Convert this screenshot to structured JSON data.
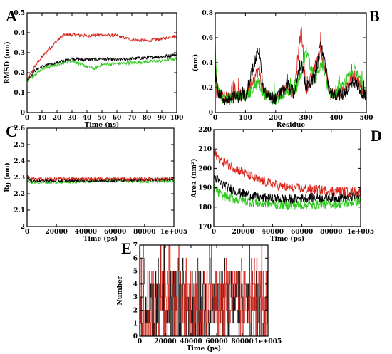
{
  "panels": [
    {
      "id": "A",
      "letter": "A",
      "type": "line",
      "xlabel": "Time (ns)",
      "ylabel": "RMSD (nm)",
      "xlim": [
        0,
        100
      ],
      "ylim": [
        0,
        0.5
      ],
      "xticks": [
        "0",
        "10",
        "20",
        "30",
        "40",
        "50",
        "60",
        "70",
        "80",
        "90",
        "100"
      ],
      "xtick_values": [
        0,
        10,
        20,
        30,
        40,
        50,
        60,
        70,
        80,
        90,
        100
      ],
      "yticks": [
        "0",
        "0.1",
        "0.2",
        "0.3",
        "0.4",
        "0.5"
      ],
      "ytick_values": [
        0,
        0.1,
        0.2,
        0.3,
        0.4,
        0.5
      ],
      "noise": 0.008,
      "series": [
        {
          "color": "#d9261c",
          "x": [
            0,
            5,
            10,
            15,
            20,
            25,
            30,
            40,
            50,
            60,
            70,
            80,
            90,
            100
          ],
          "y": [
            0.16,
            0.23,
            0.28,
            0.32,
            0.36,
            0.39,
            0.39,
            0.385,
            0.39,
            0.385,
            0.365,
            0.36,
            0.37,
            0.385
          ]
        },
        {
          "color": "#000000",
          "x": [
            0,
            5,
            10,
            20,
            30,
            40,
            50,
            60,
            70,
            80,
            90,
            100
          ],
          "y": [
            0.16,
            0.21,
            0.23,
            0.25,
            0.27,
            0.265,
            0.27,
            0.265,
            0.27,
            0.275,
            0.28,
            0.29
          ]
        },
        {
          "color": "#2ec81e",
          "x": [
            0,
            5,
            10,
            20,
            30,
            40,
            45,
            50,
            60,
            70,
            80,
            90,
            100
          ],
          "y": [
            0.16,
            0.19,
            0.22,
            0.24,
            0.26,
            0.23,
            0.22,
            0.24,
            0.245,
            0.25,
            0.255,
            0.26,
            0.27
          ]
        }
      ]
    },
    {
      "id": "B",
      "letter": "B",
      "type": "line",
      "xlabel": "Residue",
      "ylabel": "(nm)",
      "xlim": [
        0,
        500
      ],
      "ylim": [
        0,
        0.8
      ],
      "xticks": [
        "0",
        "100",
        "200",
        "300",
        "400",
        "500"
      ],
      "xtick_values": [
        0,
        100,
        200,
        300,
        400,
        500
      ],
      "yticks": [
        "0",
        "0.2",
        "0.4",
        "0.6",
        "0.8"
      ],
      "ytick_values": [
        0,
        0.2,
        0.4,
        0.6,
        0.8
      ],
      "noise": 0.05,
      "series": [
        {
          "color": "#d9261c",
          "x": [
            0,
            5,
            30,
            60,
            100,
            145,
            160,
            200,
            240,
            260,
            285,
            300,
            330,
            350,
            380,
            420,
            460,
            500
          ],
          "y": [
            0.45,
            0.15,
            0.12,
            0.13,
            0.15,
            0.35,
            0.14,
            0.12,
            0.2,
            0.15,
            0.68,
            0.18,
            0.35,
            0.5,
            0.15,
            0.16,
            0.3,
            0.12
          ]
        },
        {
          "color": "#2ec81e",
          "x": [
            0,
            5,
            30,
            60,
            100,
            145,
            160,
            200,
            240,
            260,
            285,
            300,
            330,
            350,
            380,
            420,
            460,
            500
          ],
          "y": [
            0.6,
            0.2,
            0.1,
            0.12,
            0.13,
            0.25,
            0.15,
            0.1,
            0.18,
            0.14,
            0.3,
            0.5,
            0.25,
            0.4,
            0.14,
            0.2,
            0.35,
            0.15
          ]
        },
        {
          "color": "#000000",
          "x": [
            0,
            5,
            30,
            60,
            100,
            145,
            160,
            200,
            240,
            260,
            285,
            300,
            330,
            350,
            380,
            420,
            460,
            500
          ],
          "y": [
            0.4,
            0.18,
            0.1,
            0.12,
            0.14,
            0.52,
            0.16,
            0.11,
            0.22,
            0.15,
            0.4,
            0.2,
            0.28,
            0.55,
            0.15,
            0.14,
            0.25,
            0.12
          ]
        }
      ]
    },
    {
      "id": "C",
      "letter": "C",
      "type": "line",
      "xlabel": "Time (ps)",
      "ylabel": "Rg (nm)",
      "xlim": [
        0,
        100000
      ],
      "ylim": [
        2,
        2.6
      ],
      "xticks": [
        "0",
        "20000",
        "40000",
        "60000",
        "80000",
        "1e+005"
      ],
      "xtick_values": [
        0,
        20000,
        40000,
        60000,
        80000,
        100000
      ],
      "yticks": [
        "2",
        "2.1",
        "2.2",
        "2.3",
        "2.4",
        "2.5",
        "2.6"
      ],
      "ytick_values": [
        2,
        2.1,
        2.2,
        2.3,
        2.4,
        2.5,
        2.6
      ],
      "noise": 0.01,
      "series": [
        {
          "color": "#2ec81e",
          "x": [
            0,
            2000,
            20000,
            50000,
            80000,
            100000
          ],
          "y": [
            2.28,
            2.27,
            2.27,
            2.28,
            2.275,
            2.28
          ]
        },
        {
          "color": "#000000",
          "x": [
            0,
            2000,
            20000,
            50000,
            80000,
            100000
          ],
          "y": [
            2.3,
            2.28,
            2.28,
            2.28,
            2.285,
            2.29
          ]
        },
        {
          "color": "#d9261c",
          "x": [
            0,
            2000,
            20000,
            50000,
            80000,
            100000
          ],
          "y": [
            2.31,
            2.29,
            2.29,
            2.29,
            2.29,
            2.29
          ]
        }
      ]
    },
    {
      "id": "D",
      "letter": "D",
      "type": "line",
      "xlabel": "Time (ps)",
      "ylabel": "Area (nm²)",
      "xlim": [
        0,
        100000
      ],
      "ylim": [
        170,
        220
      ],
      "xticks": [
        "0",
        "20000",
        "40000",
        "60000",
        "80000",
        "1e+005"
      ],
      "xtick_values": [
        0,
        20000,
        40000,
        60000,
        80000,
        100000
      ],
      "yticks": [
        "170",
        "180",
        "190",
        "200",
        "210",
        "220"
      ],
      "ytick_values": [
        170,
        180,
        190,
        200,
        210,
        220
      ],
      "noise": 2.5,
      "series": [
        {
          "color": "#2ec81e",
          "x": [
            0,
            5000,
            15000,
            30000,
            50000,
            70000,
            90000,
            100000
          ],
          "y": [
            190,
            186,
            184,
            182,
            181,
            181,
            182,
            183
          ]
        },
        {
          "color": "#000000",
          "x": [
            0,
            5000,
            15000,
            30000,
            50000,
            70000,
            90000,
            100000
          ],
          "y": [
            196,
            192,
            188,
            185,
            184,
            185,
            185,
            186
          ]
        },
        {
          "color": "#d9261c",
          "x": [
            0,
            5000,
            15000,
            30000,
            50000,
            70000,
            90000,
            100000
          ],
          "y": [
            208,
            204,
            200,
            194,
            190,
            189,
            188,
            188
          ]
        }
      ]
    },
    {
      "id": "E",
      "letter": "E",
      "type": "line",
      "xlabel": "Time (ps)",
      "ylabel": "Number",
      "xlim": [
        0,
        100000
      ],
      "ylim": [
        0,
        7
      ],
      "xticks": [
        "0",
        "20000",
        "40000",
        "60000",
        "80000",
        "1e+005"
      ],
      "xtick_values": [
        0,
        20000,
        40000,
        60000,
        80000,
        100000
      ],
      "yticks": [
        "0",
        "1",
        "2",
        "3",
        "4",
        "5",
        "6",
        "7"
      ],
      "ytick_values": [
        0,
        1,
        2,
        3,
        4,
        5,
        6,
        7
      ],
      "series": [
        {
          "color": "#000000",
          "range": [
            0,
            5
          ]
        },
        {
          "color": "#d9261c",
          "range": [
            0,
            5
          ]
        }
      ]
    }
  ]
}
